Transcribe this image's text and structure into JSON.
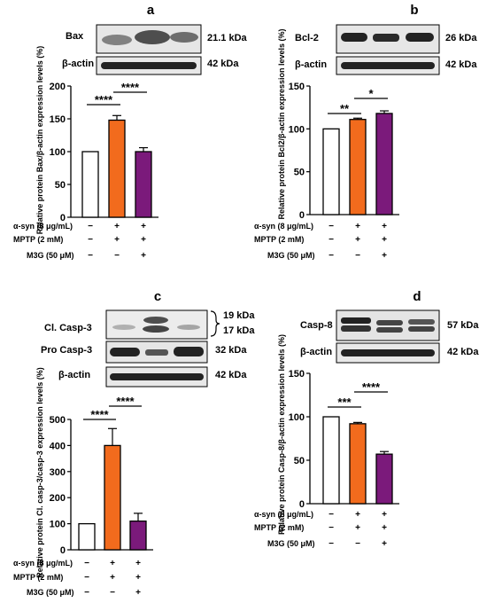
{
  "chart_data": [
    {
      "type": "bar",
      "panel": "a",
      "ylabel": "Relative protein Bax/β-actin expression levels (%)",
      "ylim": [
        0,
        200
      ],
      "yticks": [
        "0",
        "50",
        "100",
        "150",
        "200"
      ],
      "categories": [
        "α-syn − MPTP − M3G −",
        "α-syn + MPTP + M3G −",
        "α-syn + MPTP + M3G +"
      ],
      "values": [
        100,
        148,
        100
      ],
      "errors": [
        0,
        7,
        6
      ],
      "colors": [
        "#ffffff",
        "#f26b1d",
        "#7b1a7b"
      ],
      "significance": [
        {
          "from": 0,
          "to": 1,
          "label": "****"
        },
        {
          "from": 1,
          "to": 2,
          "label": "****"
        }
      ],
      "blot": {
        "rows": [
          {
            "protein": "Bax",
            "size": "21.1 kDa"
          },
          {
            "protein": "β-actin",
            "size": "42 kDa"
          }
        ]
      },
      "treatments": [
        {
          "label": "α-syn (8 μg/mL)",
          "signs": [
            "−",
            "+",
            "+"
          ]
        },
        {
          "label": "MPTP (2 mM)",
          "signs": [
            "−",
            "+",
            "+"
          ]
        },
        {
          "label": "M3G (50 μM)",
          "signs": [
            "−",
            "−",
            "+"
          ]
        }
      ]
    },
    {
      "type": "bar",
      "panel": "b",
      "ylabel": "Relative protein Bcl2/β-actin expression levels (%)",
      "ylim": [
        0,
        150
      ],
      "yticks": [
        "0",
        "50",
        "100",
        "150"
      ],
      "categories": [
        "α-syn − MPTP − M3G −",
        "α-syn + MPTP + M3G −",
        "α-syn + MPTP + M3G +"
      ],
      "values": [
        100,
        111,
        118
      ],
      "errors": [
        0,
        1.5,
        3
      ],
      "colors": [
        "#ffffff",
        "#f26b1d",
        "#7b1a7b"
      ],
      "significance": [
        {
          "from": 0,
          "to": 1,
          "label": "**"
        },
        {
          "from": 1,
          "to": 2,
          "label": "*"
        }
      ],
      "blot": {
        "rows": [
          {
            "protein": "Bcl-2",
            "size": "26 kDa"
          },
          {
            "protein": "β-actin",
            "size": "42 kDa"
          }
        ]
      },
      "treatments": [
        {
          "label": "α-syn (8 μg/mL)",
          "signs": [
            "−",
            "+",
            "+"
          ]
        },
        {
          "label": "MPTP (2 mM)",
          "signs": [
            "−",
            "+",
            "+"
          ]
        },
        {
          "label": "M3G (50 μM)",
          "signs": [
            "−",
            "−",
            "+"
          ]
        }
      ]
    },
    {
      "type": "bar",
      "panel": "c",
      "ylabel": "Relative protein Cl. casp-3/casp-3 expression levels (%)",
      "ylim": [
        0,
        500
      ],
      "yticks": [
        "0",
        "100",
        "200",
        "300",
        "400",
        "500"
      ],
      "categories": [
        "α-syn − MPTP − M3G −",
        "α-syn + MPTP + M3G −",
        "α-syn + MPTP + M3G +"
      ],
      "values": [
        100,
        400,
        110
      ],
      "errors": [
        0,
        65,
        30
      ],
      "colors": [
        "#ffffff",
        "#f26b1d",
        "#7b1a7b"
      ],
      "significance": [
        {
          "from": 0,
          "to": 1,
          "label": "****"
        },
        {
          "from": 1,
          "to": 2,
          "label": "****"
        }
      ],
      "blot": {
        "rows": [
          {
            "protein": "Cl. Casp-3",
            "size": "19 kDa",
            "size2": "17 kDa"
          },
          {
            "protein": "Pro Casp-3",
            "size": "32 kDa"
          },
          {
            "protein": "β-actin",
            "size": "42 kDa"
          }
        ]
      },
      "treatments": [
        {
          "label": "α-syn (8 μg/mL)",
          "signs": [
            "−",
            "+",
            "+"
          ]
        },
        {
          "label": "MPTP (2 mM)",
          "signs": [
            "−",
            "+",
            "+"
          ]
        },
        {
          "label": "M3G (50 μM)",
          "signs": [
            "−",
            "−",
            "+"
          ]
        }
      ]
    },
    {
      "type": "bar",
      "panel": "d",
      "ylabel": "Relative protein Casp-8/β-actin expression levels (%)",
      "ylim": [
        0,
        150
      ],
      "yticks": [
        "0",
        "50",
        "100",
        "150"
      ],
      "categories": [
        "α-syn − MPTP − M3G −",
        "α-syn + MPTP + M3G −",
        "α-syn + MPTP + M3G +"
      ],
      "values": [
        100,
        92,
        57
      ],
      "errors": [
        0,
        1.5,
        3
      ],
      "colors": [
        "#ffffff",
        "#f26b1d",
        "#7b1a7b"
      ],
      "significance": [
        {
          "from": 0,
          "to": 1,
          "label": "***"
        },
        {
          "from": 1,
          "to": 2,
          "label": "****"
        }
      ],
      "blot": {
        "rows": [
          {
            "protein": "Casp-8",
            "size": "57 kDa"
          },
          {
            "protein": "β-actin",
            "size": "42 kDa"
          }
        ]
      },
      "treatments": [
        {
          "label": "α-syn (8 μg/mL)",
          "signs": [
            "−",
            "+",
            "+"
          ]
        },
        {
          "label": "MPTP (2 mM)",
          "signs": [
            "−",
            "+",
            "+"
          ]
        },
        {
          "label": "M3G (50 μM)",
          "signs": [
            "−",
            "−",
            "+"
          ]
        }
      ]
    }
  ]
}
